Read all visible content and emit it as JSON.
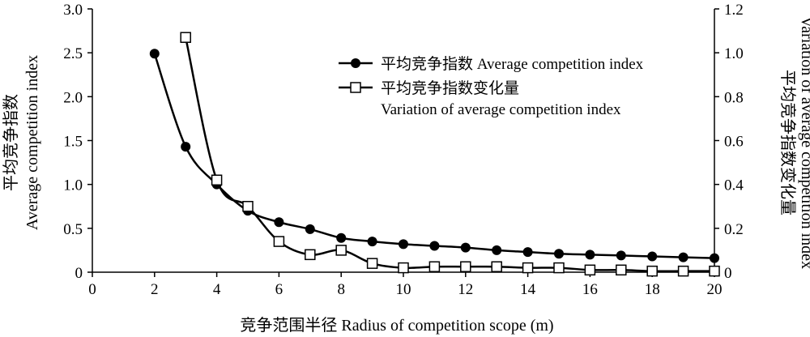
{
  "chart_data": {
    "type": "line",
    "xlabel": "竞争范围半径 Radius of competition scope (m)",
    "ylabel_left": [
      "平均竞争指数",
      "Average competition index"
    ],
    "ylabel_right": [
      "平均竞争指数变化量",
      "Variation of average competition index"
    ],
    "xlim": [
      0,
      20
    ],
    "ylim_left": [
      0,
      3.0
    ],
    "ylim_right": [
      0,
      1.2
    ],
    "xticks": [
      "0",
      "2",
      "4",
      "6",
      "8",
      "10",
      "12",
      "14",
      "16",
      "18",
      "20"
    ],
    "yticks_left": [
      "0",
      "0.5",
      "1.0",
      "1.5",
      "2.0",
      "2.5",
      "3.0"
    ],
    "yticks_right": [
      "0",
      "0.2",
      "0.4",
      "0.6",
      "0.8",
      "1.0",
      "1.2"
    ],
    "legend_position": "top-right",
    "series": [
      {
        "name": "平均竞争指数 Average competition index",
        "axis": "left",
        "marker": "filled-circle",
        "x": [
          2,
          3,
          4,
          5,
          6,
          7,
          8,
          9,
          10,
          11,
          12,
          13,
          14,
          15,
          16,
          17,
          18,
          19,
          20
        ],
        "y": [
          2.49,
          1.43,
          1.0,
          0.7,
          0.57,
          0.49,
          0.39,
          0.35,
          0.32,
          0.3,
          0.28,
          0.25,
          0.23,
          0.21,
          0.2,
          0.19,
          0.18,
          0.17,
          0.16
        ]
      },
      {
        "name_lines": [
          "平均竞争指数变化量",
          "Variation of average competition index"
        ],
        "axis": "right",
        "marker": "open-square",
        "x": [
          3,
          4,
          5,
          6,
          7,
          8,
          9,
          10,
          11,
          12,
          13,
          14,
          15,
          16,
          17,
          18,
          19,
          20
        ],
        "y": [
          1.07,
          0.42,
          0.3,
          0.14,
          0.08,
          0.1,
          0.04,
          0.02,
          0.025,
          0.025,
          0.025,
          0.02,
          0.02,
          0.01,
          0.01,
          0.005,
          0.005,
          0.005
        ]
      }
    ]
  }
}
